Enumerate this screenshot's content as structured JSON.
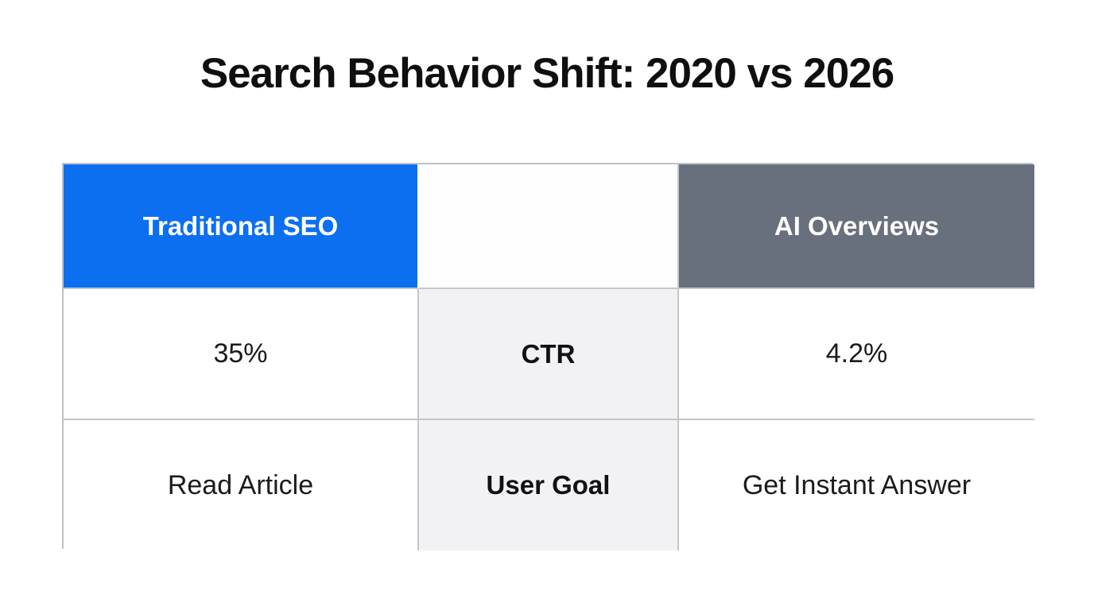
{
  "page": {
    "title": "Search Behavior Shift: 2020 vs 2026"
  },
  "table": {
    "header": {
      "traditional": "Traditional SEO",
      "spacer": "",
      "ai": "AI Overviews"
    },
    "rows": [
      {
        "traditional": "35%",
        "label": "CTR",
        "ai": "4.2%"
      },
      {
        "traditional": "Read Article",
        "label": "User Goal",
        "ai": "Get Instant Answer"
      }
    ]
  },
  "colors": {
    "traditional_header_bg": "#0b6ff0",
    "ai_header_bg": "#68707d",
    "label_cell_bg": "#f2f2f4",
    "border": "#c3c6c9",
    "header_text": "#ffffff",
    "body_text": "#1a1b1d",
    "title_text": "#0e0f11"
  },
  "chart_data": {
    "type": "table",
    "title": "Search Behavior Shift: 2020 vs 2026",
    "columns": [
      "Traditional SEO",
      "",
      "AI Overviews"
    ],
    "rows": [
      [
        "35%",
        "CTR",
        "4.2%"
      ],
      [
        "Read Article",
        "User Goal",
        "Get Instant Answer"
      ]
    ],
    "metrics": [
      {
        "metric": "CTR",
        "traditional_seo": "35%",
        "ai_overviews": "4.2%"
      },
      {
        "metric": "User Goal",
        "traditional_seo": "Read Article",
        "ai_overviews": "Get Instant Answer"
      }
    ]
  }
}
